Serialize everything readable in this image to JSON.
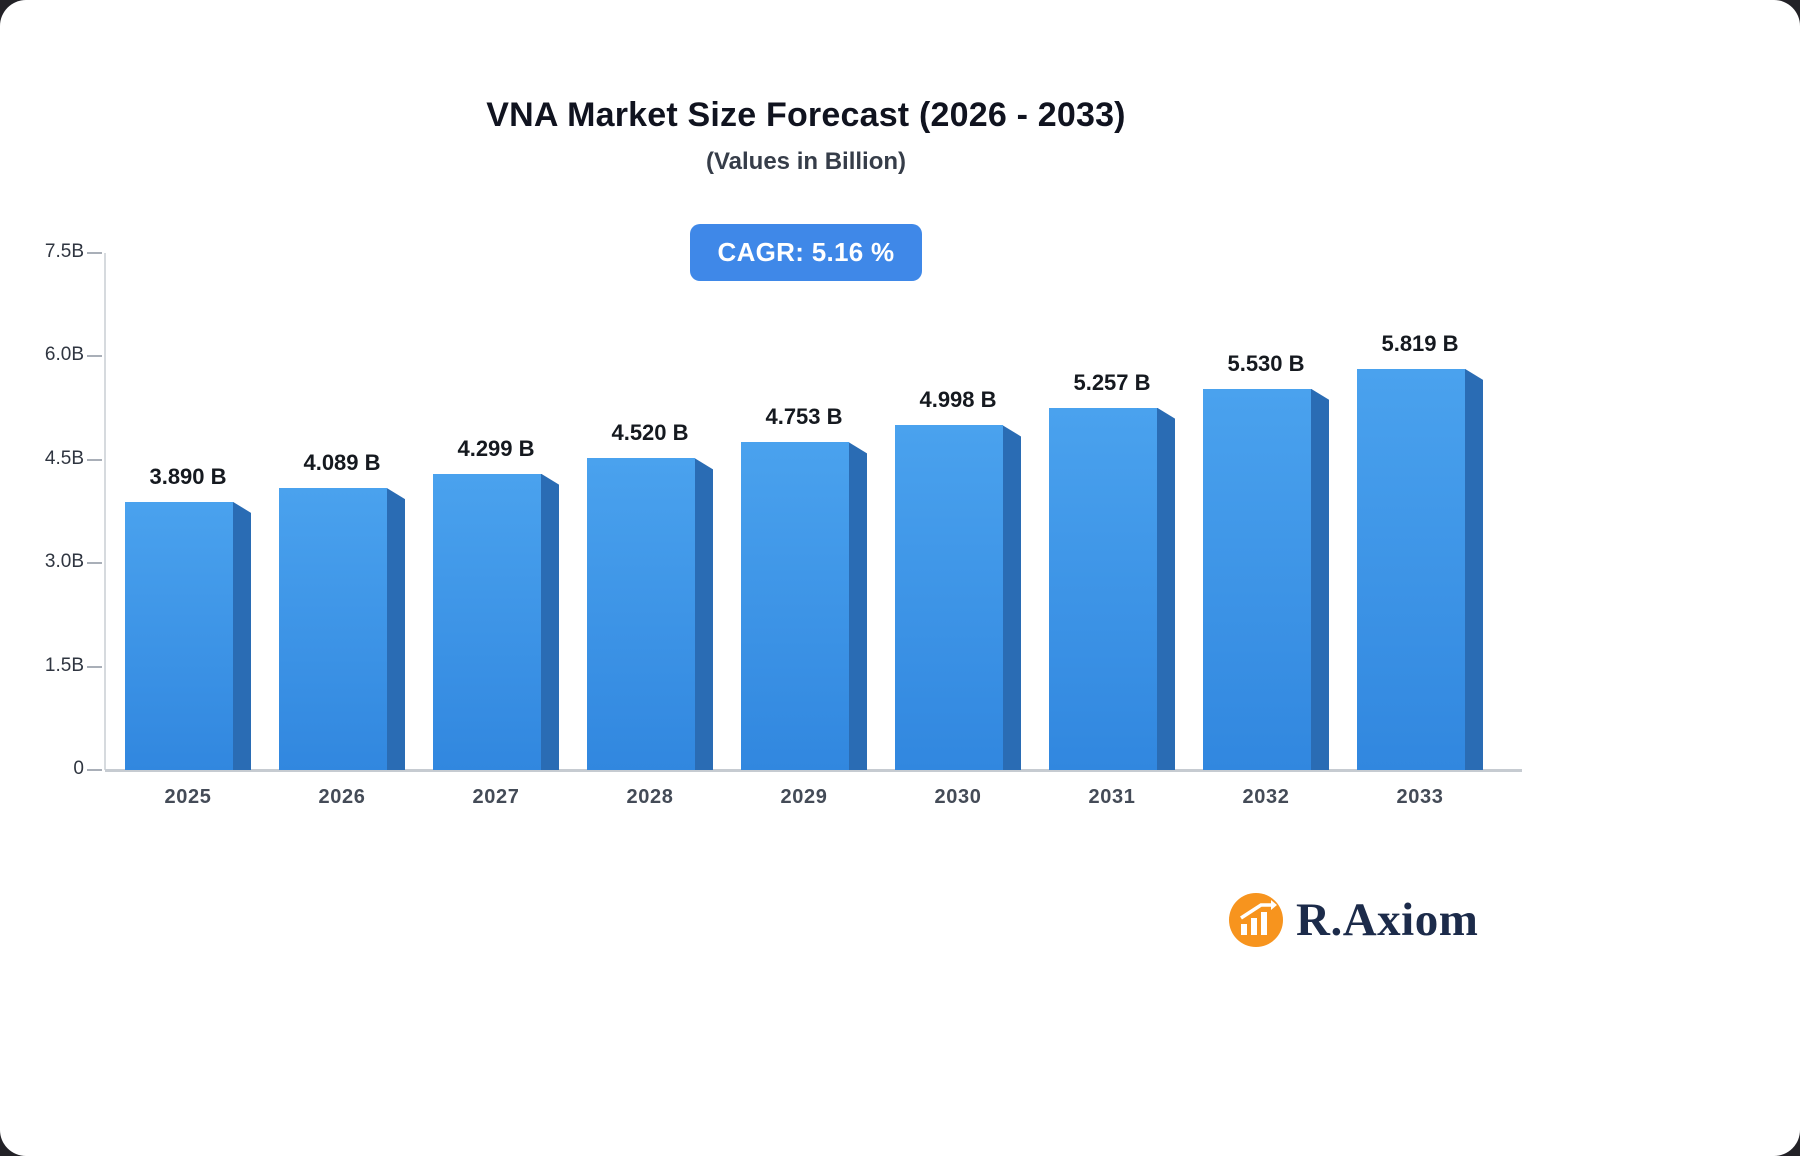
{
  "canvas": {
    "outer_bg": "#232227",
    "card_bg": "#ffffff"
  },
  "header": {
    "title": "VNA Market Size Forecast (2026 - 2033)",
    "subtitle": "(Values in Billion)"
  },
  "cagr_badge": {
    "text": "CAGR: 5.16 %",
    "bg_color": "#3f88e8",
    "text_color": "#ffffff"
  },
  "chart_data": {
    "type": "bar",
    "title": "VNA Market Size Forecast (2026 - 2033)",
    "subtitle": "(Values in Billion)",
    "categories": [
      "2025",
      "2026",
      "2027",
      "2028",
      "2029",
      "2030",
      "2031",
      "2032",
      "2033"
    ],
    "values": [
      3.89,
      4.089,
      4.299,
      4.52,
      4.753,
      4.998,
      5.257,
      5.53,
      5.819
    ],
    "value_labels": [
      "3.890 B",
      "4.089 B",
      "4.299 B",
      "4.520 B",
      "4.753 B",
      "4.998 B",
      "5.257 B",
      "5.530 B",
      "5.819 B"
    ],
    "xlabel": "",
    "ylabel": "",
    "ylim": [
      0,
      7.5
    ],
    "yticks": [
      0,
      1.5,
      3.0,
      4.5,
      6.0,
      7.5
    ],
    "ytick_labels": [
      "0",
      "1.5B",
      "3.0B",
      "4.5B",
      "6.0B",
      "7.5B"
    ],
    "grid": false,
    "legend": "none",
    "bar_color_top": "#4aa2ee",
    "bar_color_bottom": "#3187df",
    "bar_side_color": "#2a6cb4"
  },
  "logo": {
    "brand": "R.Axiom",
    "icon": "chart-growth-circle-icon",
    "icon_color": "#F7941E",
    "text_color": "#1c2b4a"
  }
}
